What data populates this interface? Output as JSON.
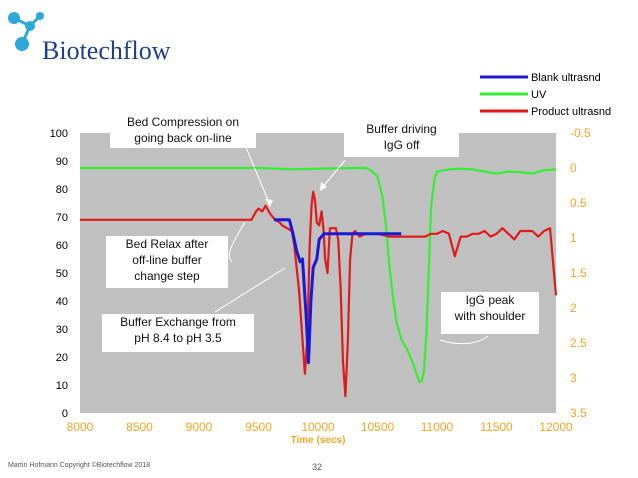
{
  "brand": {
    "name": "Biotechflow",
    "logo_icon": "molecule-logo-icon",
    "accent": "#1f3f8a",
    "dot_color": "#2fa7d8"
  },
  "footer": {
    "copyright": "Martin Hofmann  Copyright ©Biotechflow 2018",
    "page": "32"
  },
  "annotations": {
    "bed_compression": "Bed Compression on\ngoing back on-line",
    "buffer_driving": "Buffer driving\nIgG off",
    "bed_relax": "Bed Relax  after\noff-line buffer\nchange step",
    "buffer_exchange": "Buffer Exchange from\npH 8.4 to pH 3.5",
    "igg_peak": "IgG peak\nwith shoulder"
  },
  "chart_data": {
    "type": "line",
    "title": "",
    "xlabel": "Time (secs)",
    "ylabel": "",
    "xlim": [
      8000,
      12000
    ],
    "x_ticks": [
      "8000",
      "8500",
      "9000",
      "9500",
      "10000",
      "10500",
      "11000",
      "11500",
      "12000"
    ],
    "ylim_left": [
      0,
      100
    ],
    "y_ticks_left": [
      "0",
      "10",
      "20",
      "30",
      "40",
      "50",
      "60",
      "70",
      "80",
      "90",
      "100"
    ],
    "ylim_right": [
      -0.5,
      3.5
    ],
    "right_axis_inverted": true,
    "y_ticks_right": [
      "-0.5",
      "0",
      "0.5",
      "1",
      "1.5",
      "2",
      "2.5",
      "3",
      "3.5"
    ],
    "plot_background": "#c0c0c0",
    "grid": false,
    "legend_position": "top-right",
    "series": [
      {
        "name": "Blank ultrasnd",
        "color": "#1a1ad6",
        "axis": "left",
        "x": [
          9630,
          9700,
          9760,
          9790,
          9820,
          9850,
          9870,
          9900,
          9920,
          9940,
          9960,
          9990,
          10010,
          10050,
          10100,
          10200,
          10300,
          10400,
          10500,
          10600,
          10700
        ],
        "y": [
          69,
          69,
          69,
          64,
          58,
          54,
          55,
          35,
          18,
          40,
          52,
          55,
          62,
          64,
          64,
          64,
          64,
          64,
          64,
          64,
          64
        ]
      },
      {
        "name": "UV",
        "color": "#33ee33",
        "axis": "right",
        "x": [
          8000,
          8500,
          9000,
          9500,
          9800,
          10000,
          10300,
          10400,
          10450,
          10500,
          10540,
          10570,
          10600,
          10630,
          10660,
          10700,
          10750,
          10800,
          10850,
          10870,
          10890,
          10910,
          10930,
          10950,
          10980,
          11000,
          11100,
          11200,
          11300,
          11400,
          11500,
          11600,
          11700,
          11800,
          11900,
          12000
        ],
        "y": [
          0.0,
          0.0,
          0.0,
          0.0,
          0.02,
          0.01,
          0.0,
          0.0,
          0.04,
          0.12,
          0.4,
          0.8,
          1.4,
          1.85,
          2.2,
          2.45,
          2.6,
          2.8,
          3.05,
          3.05,
          2.9,
          2.4,
          1.5,
          0.55,
          0.15,
          0.05,
          0.02,
          0.01,
          0.02,
          0.05,
          0.08,
          0.05,
          0.06,
          0.08,
          0.03,
          0.02
        ]
      },
      {
        "name": "Product ultrasnd",
        "color": "#e01a1a",
        "axis": "left",
        "x": [
          8000,
          8200,
          8400,
          8600,
          8800,
          9000,
          9200,
          9300,
          9400,
          9440,
          9480,
          9500,
          9530,
          9560,
          9600,
          9640,
          9680,
          9700,
          9740,
          9780,
          9800,
          9820,
          9840,
          9870,
          9890,
          9910,
          9930,
          9945,
          9960,
          9975,
          9990,
          10010,
          10030,
          10045,
          10060,
          10080,
          10100,
          10120,
          10150,
          10170,
          10190,
          10210,
          10230,
          10250,
          10270,
          10290,
          10310,
          10330,
          10350,
          10400,
          10500,
          10600,
          10700,
          10800,
          10850,
          10900,
          10950,
          11000,
          11050,
          11100,
          11150,
          11200,
          11250,
          11300,
          11350,
          11400,
          11450,
          11500,
          11550,
          11600,
          11650,
          11700,
          11750,
          11800,
          11850,
          11900,
          11950,
          12000
        ],
        "y": [
          69,
          69,
          69,
          69,
          69,
          69,
          69,
          69,
          69,
          69,
          72,
          73,
          72,
          74,
          71,
          69,
          68,
          67,
          66,
          65,
          60,
          52,
          44,
          26,
          14,
          26,
          60,
          74,
          79,
          76,
          68,
          67,
          72,
          66,
          55,
          50,
          66,
          66,
          66,
          62,
          45,
          18,
          6,
          25,
          55,
          64,
          65,
          64,
          63,
          64,
          64,
          63,
          63,
          63,
          63,
          63,
          64,
          64,
          65,
          64,
          56,
          63,
          63,
          64,
          64,
          65,
          63,
          64,
          66,
          64,
          62,
          65,
          65,
          65,
          63,
          65,
          66,
          42
        ]
      }
    ],
    "legend": [
      "Blank ultrasnd",
      "UV",
      "Product ultrasnd"
    ]
  }
}
